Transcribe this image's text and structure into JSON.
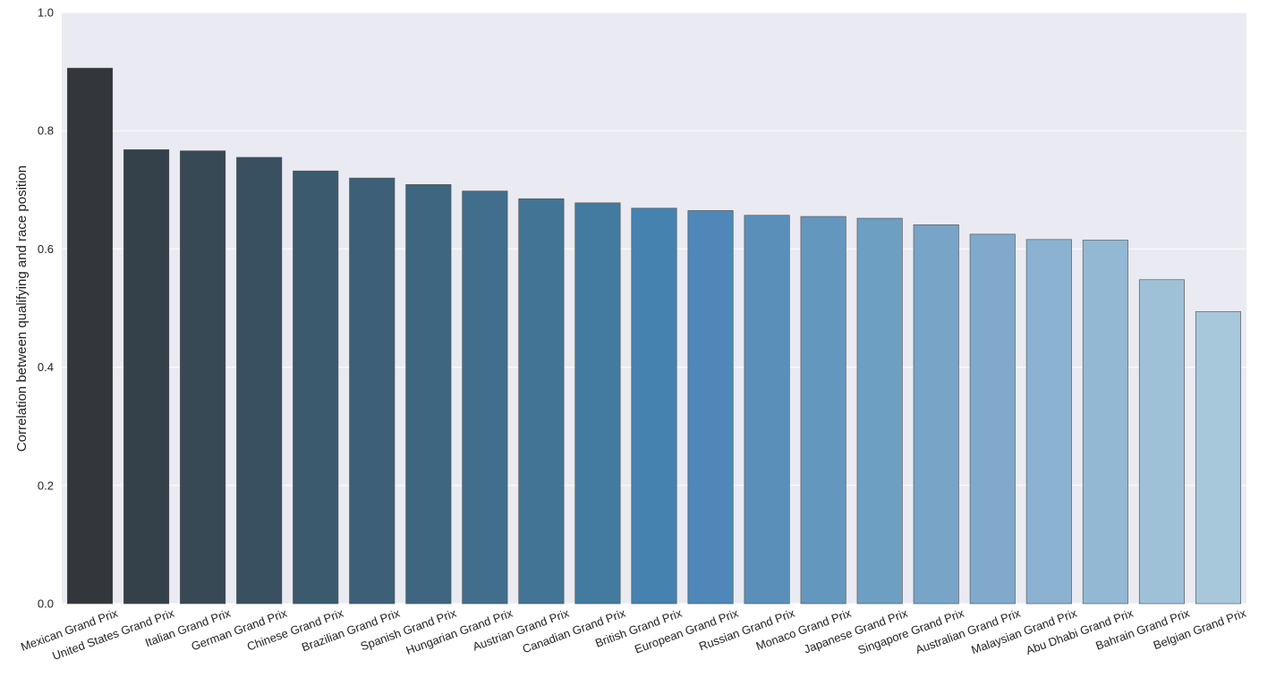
{
  "chart_data": {
    "type": "bar",
    "title": "",
    "xlabel": "",
    "ylabel": "Correlation between qualifying and race position",
    "ylim": [
      0,
      1.0
    ],
    "yticks": [
      "0.0",
      "0.2",
      "0.4",
      "0.6",
      "0.8",
      "1.0"
    ],
    "grid": true,
    "categories": [
      "Mexican Grand Prix",
      "United States Grand Prix",
      "Italian Grand Prix",
      "German Grand Prix",
      "Chinese Grand Prix",
      "Brazilian Grand Prix",
      "Spanish Grand Prix",
      "Hungarian Grand Prix",
      "Austrian Grand Prix",
      "Canadian Grand Prix",
      "British Grand Prix",
      "European Grand Prix",
      "Russian Grand Prix",
      "Monaco Grand Prix",
      "Japanese Grand Prix",
      "Singapore Grand Prix",
      "Australian Grand Prix",
      "Malaysian Grand Prix",
      "Abu Dhabi Grand Prix",
      "Bahrain Grand Prix",
      "Belgian Grand Prix"
    ],
    "values": [
      0.906,
      0.768,
      0.766,
      0.755,
      0.732,
      0.72,
      0.709,
      0.698,
      0.685,
      0.678,
      0.669,
      0.665,
      0.657,
      0.655,
      0.652,
      0.641,
      0.625,
      0.616,
      0.615,
      0.548,
      0.494
    ],
    "colors": [
      "#33373b",
      "#35414a",
      "#364955",
      "#38505f",
      "#3b5a6e",
      "#3d5f77",
      "#3e6680",
      "#406e8c",
      "#427496",
      "#437ba0",
      "#4682b0",
      "#4f88b8",
      "#5a8fba",
      "#6397be",
      "#6d9fc3",
      "#77a4c7",
      "#80a9cb",
      "#8bb2d0",
      "#92b8d4",
      "#9ec1d7",
      "#a7c7db"
    ]
  }
}
